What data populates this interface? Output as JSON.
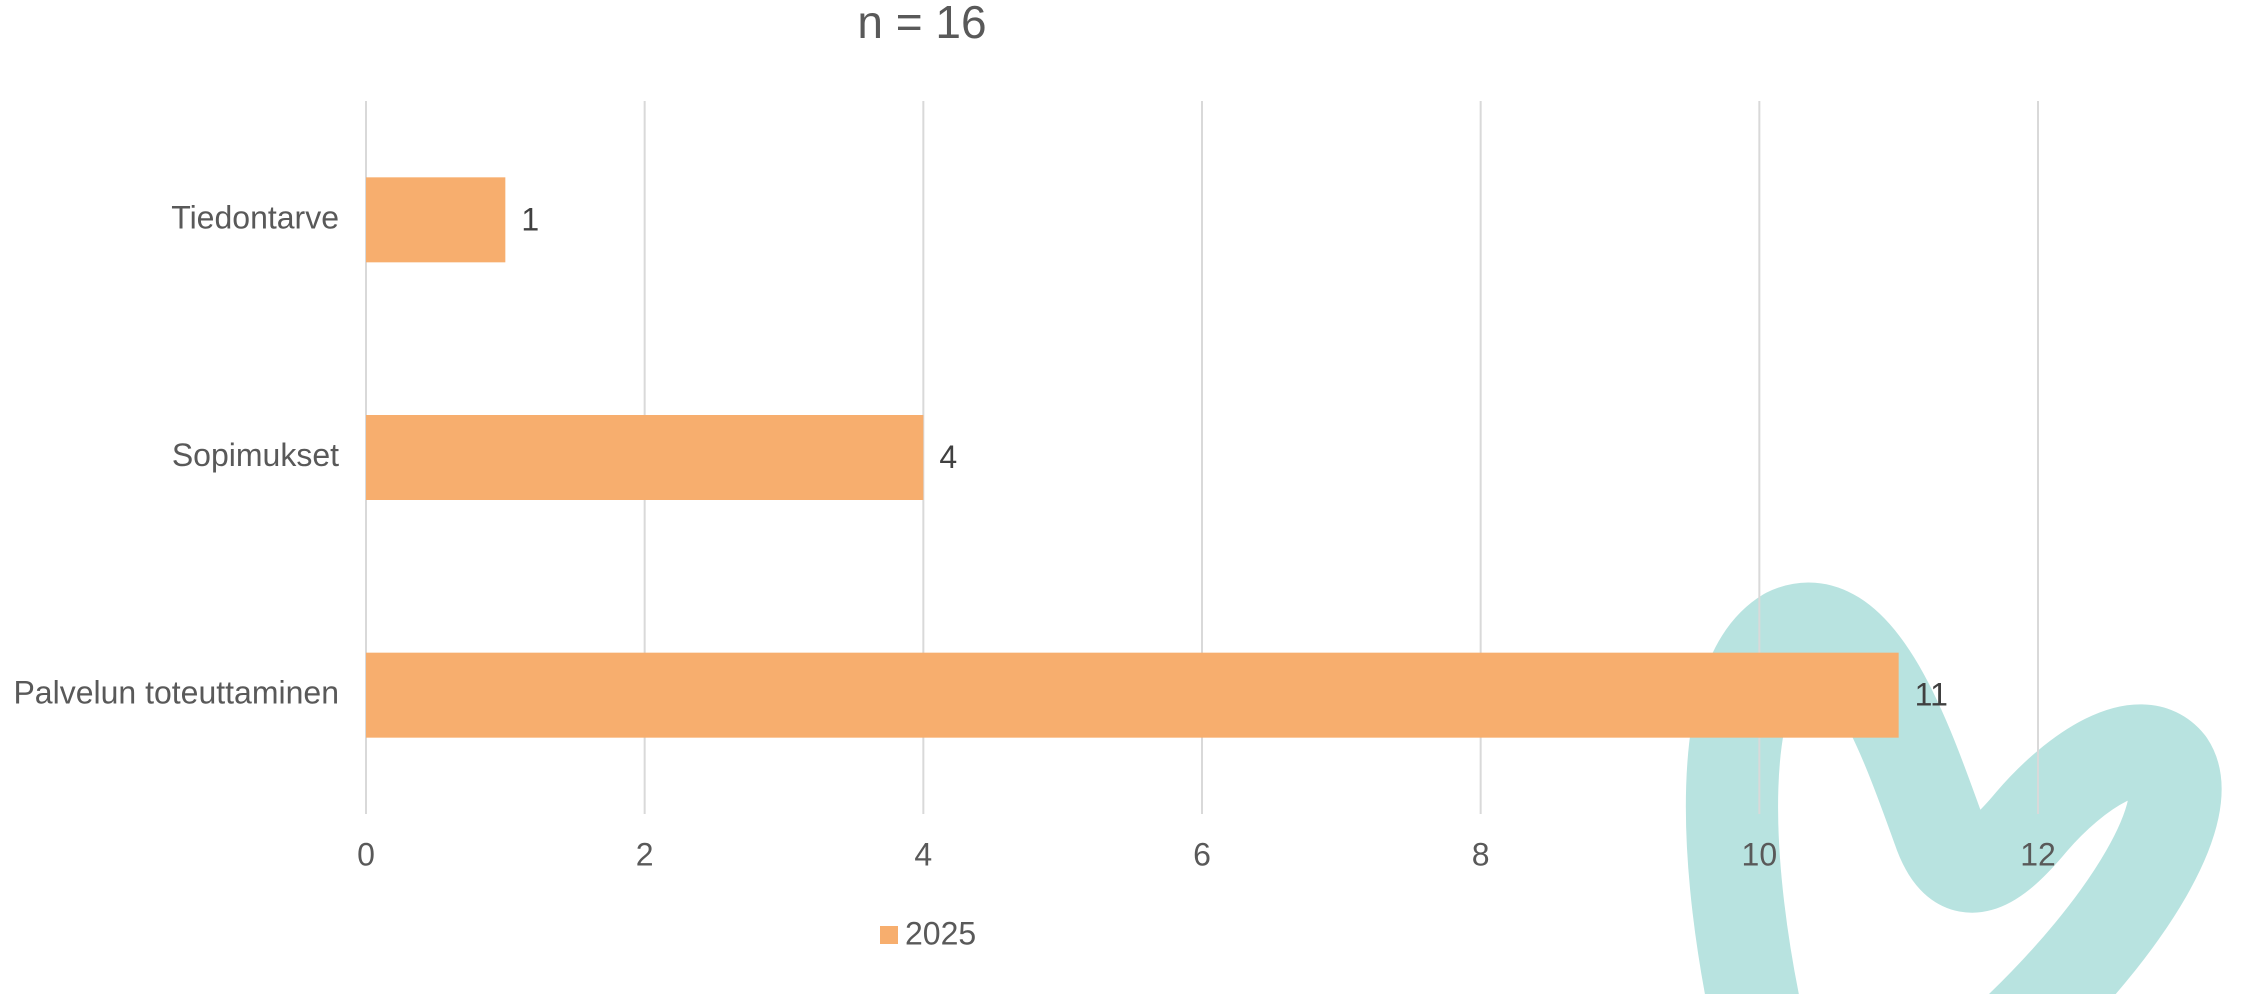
{
  "chart_data": {
    "type": "barh",
    "title": "n = 16",
    "categories": [
      "Tiedontarve",
      "Sopimukset",
      "Palvelun toteuttaminen"
    ],
    "series": [
      {
        "name": "2025",
        "color": "#f7ae6e",
        "values": [
          1,
          4,
          11
        ]
      }
    ],
    "xlim": [
      0,
      12
    ],
    "xticks": [
      0,
      2,
      4,
      6,
      8,
      10,
      12
    ],
    "grid": true,
    "legend": "bottom"
  }
}
